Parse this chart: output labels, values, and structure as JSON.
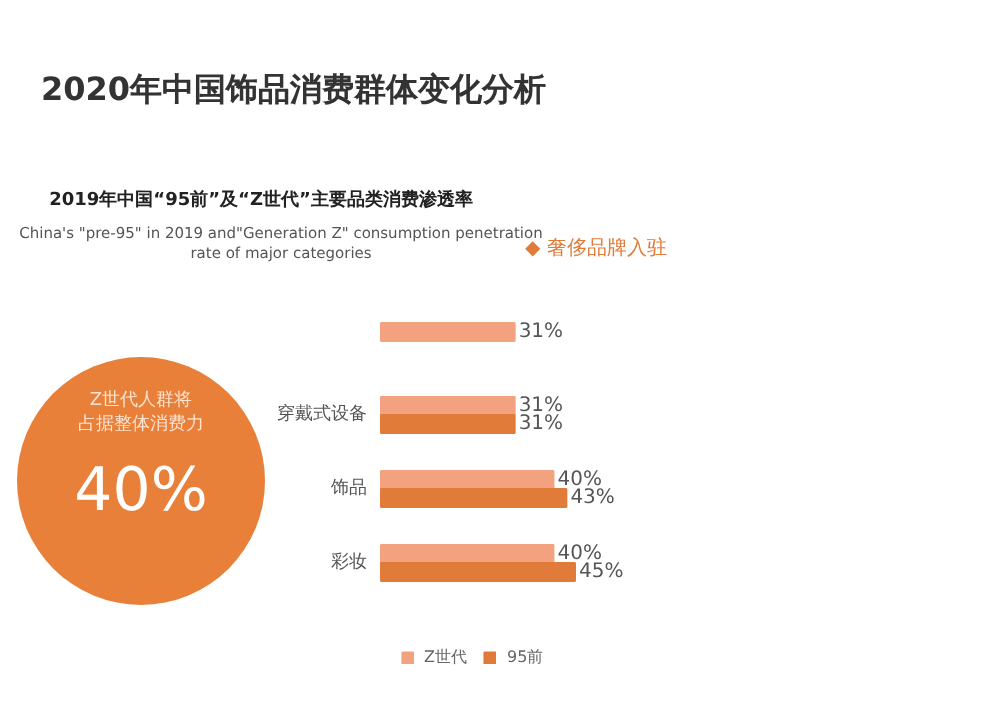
{
  "chart_data": {
    "type": "bar",
    "orientation": "horizontal",
    "title": "2020年中国饰品消费群体变化分析",
    "subtitle": "2019年中国“95前”及“Z世代”主要品类消费渗透率\nChina's \"pre-95\" in 2019 and\"Generation Z\" consumption penetration\nrate of major categories",
    "categories": [
      null,
      "穿戴式设备",
      "饰品",
      "彩妆"
    ],
    "series": [
      {
        "name": "Z世代",
        "color": "#f2a27e",
        "values": [
          31,
          31,
          40,
          40
        ],
        "value_labels": [
          "31%",
          "31%",
          "40%",
          "40%"
        ]
      },
      {
        "name": "95前",
        "color": "#e07b39",
        "values": [
          null,
          31,
          43,
          45
        ],
        "value_labels": [
          null,
          "31%",
          "43%",
          "45%"
        ]
      }
    ],
    "tick_labels": "y",
    "legend": "bottom",
    "annotations": [
      "Z世代人群将",
      "占据整体消费力",
      "40%",
      "◆ 奢侈品牌入驻"
    ]
  }
}
